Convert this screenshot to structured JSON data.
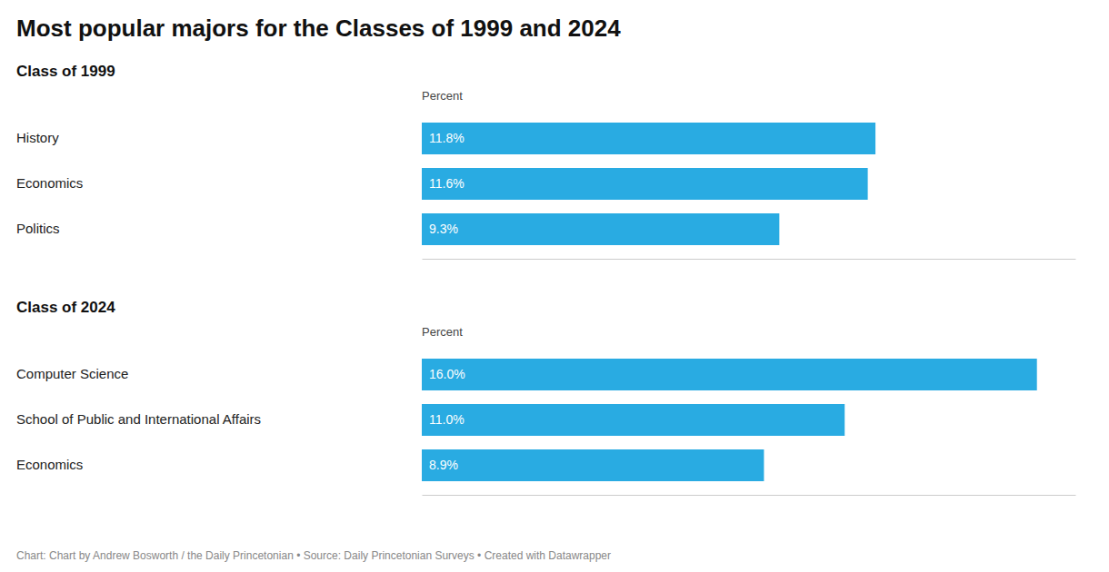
{
  "chart_data": [
    {
      "type": "bar",
      "orientation": "horizontal",
      "title": "Most popular majors for the Classes of 1999 and 2024",
      "subtitle": "Class of 1999",
      "xlabel": "Percent",
      "categories": [
        "History",
        "Economics",
        "Politics"
      ],
      "values": [
        11.8,
        11.6,
        9.3
      ],
      "value_labels": [
        "11.8%",
        "11.6%",
        "9.3%"
      ],
      "data_labels": true,
      "color": "#29abe2",
      "xlim": [
        0,
        17
      ],
      "tick_labels": "y",
      "grid": false
    },
    {
      "type": "bar",
      "orientation": "horizontal",
      "subtitle": "Class of 2024",
      "xlabel": "Percent",
      "categories": [
        "Computer Science",
        "School of Public and International Affairs",
        "Economics"
      ],
      "values": [
        16.0,
        11.0,
        8.9
      ],
      "value_labels": [
        "16.0%",
        "11.0%",
        "8.9%"
      ],
      "data_labels": true,
      "color": "#29abe2",
      "xlim": [
        0,
        17
      ],
      "tick_labels": "y",
      "grid": false,
      "annotations": [
        "Chart: Chart by Andrew Bosworth / the Daily Princetonian • Source: Daily Princetonian Surveys • Created with Datawrapper"
      ]
    }
  ]
}
